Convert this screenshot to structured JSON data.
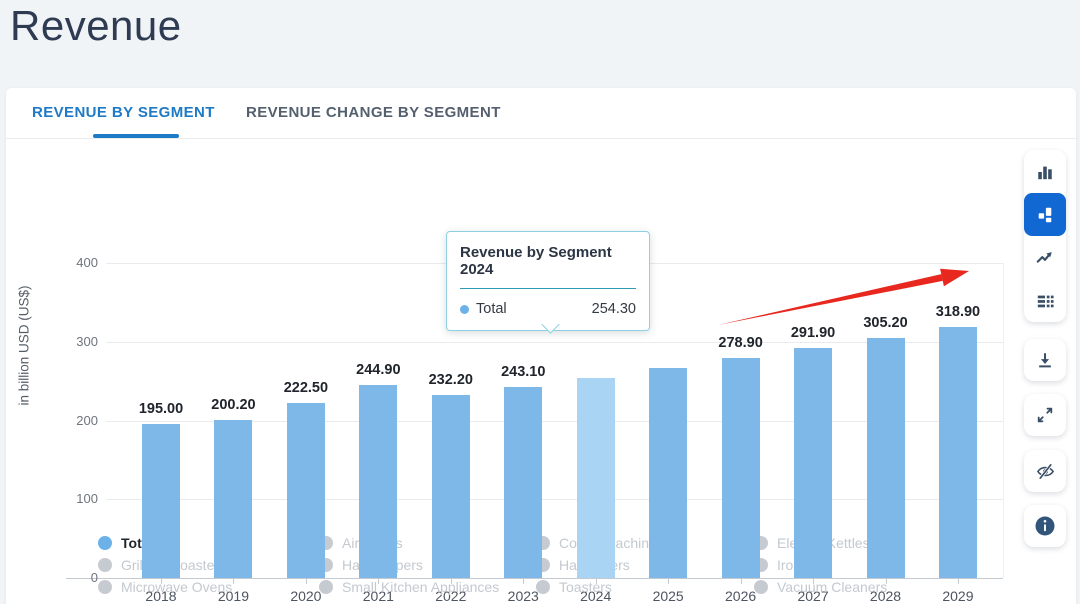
{
  "page": {
    "title": "Revenue"
  },
  "tabs": [
    {
      "label": "REVENUE BY SEGMENT",
      "active": true
    },
    {
      "label": "REVENUE CHANGE BY SEGMENT",
      "active": false
    }
  ],
  "chart_data": {
    "type": "bar",
    "title": "Revenue by Segment",
    "ylabel": "in billion USD (US$)",
    "ylim": [
      0,
      400
    ],
    "yticks": [
      0,
      100,
      200,
      300,
      400
    ],
    "grid": true,
    "legend_position": "bottom",
    "categories": [
      "2018",
      "2019",
      "2020",
      "2021",
      "2022",
      "2023",
      "2024",
      "2025",
      "2026",
      "2027",
      "2028",
      "2029"
    ],
    "series": [
      {
        "name": "Total",
        "values": [
          195.0,
          200.2,
          222.5,
          244.9,
          232.2,
          243.1,
          254.3,
          266.4,
          278.9,
          291.9,
          305.2,
          318.9
        ]
      }
    ],
    "bar_value_labels": [
      "195.00",
      "200.20",
      "222.50",
      "244.90",
      "232.20",
      "243.10",
      "",
      "",
      "278.90",
      "291.90",
      "305.20",
      "318.90"
    ],
    "hidden_value_label_indices": [
      6,
      7
    ],
    "hidden_label_reason": "occluded by tooltip; 2025 value estimated from bar height",
    "highlighted_index": 6
  },
  "tooltip": {
    "title": "Revenue by Segment 2024",
    "series_label": "Total",
    "value": "254.30"
  },
  "legend": {
    "columns": [
      [
        {
          "label": "Total",
          "active": true
        },
        {
          "label": "Grills & Roasters",
          "active": false
        },
        {
          "label": "Microwave Ovens",
          "active": false
        }
      ],
      [
        {
          "label": "Air Fryers",
          "active": false
        },
        {
          "label": "Hair Clippers",
          "active": false
        },
        {
          "label": "Small Kitchen Appliances",
          "active": false
        }
      ],
      [
        {
          "label": "Coffee Machines",
          "active": false
        },
        {
          "label": "Hair Dryers",
          "active": false
        },
        {
          "label": "Toasters",
          "active": false
        }
      ],
      [
        {
          "label": "Electric Kettles",
          "active": false
        },
        {
          "label": "Irons",
          "active": false
        },
        {
          "label": "Vacuum Cleaners",
          "active": false
        }
      ]
    ]
  },
  "toolbar": {
    "chart_types": [
      {
        "name": "bar-chart",
        "selected": false
      },
      {
        "name": "column-chart",
        "selected": true
      },
      {
        "name": "line-chart",
        "selected": false
      },
      {
        "name": "table-view",
        "selected": false
      }
    ],
    "actions": [
      "download",
      "fullscreen",
      "hide",
      "info"
    ]
  },
  "annotation": {
    "type": "arrow",
    "color": "#e8281e",
    "meaning": "upward trend emphasis"
  },
  "colors": {
    "bar": "#7db8e8",
    "bar_highlight": "#a9d4f4",
    "tab_active": "#1d7ac6",
    "toolbar_selected": "#1268d3",
    "legend_inactive": "#c6cbd1",
    "tooltip_border": "#8fd0e2",
    "tooltip_divider": "#2e9bb4",
    "arrow_red": "#e8281e"
  }
}
